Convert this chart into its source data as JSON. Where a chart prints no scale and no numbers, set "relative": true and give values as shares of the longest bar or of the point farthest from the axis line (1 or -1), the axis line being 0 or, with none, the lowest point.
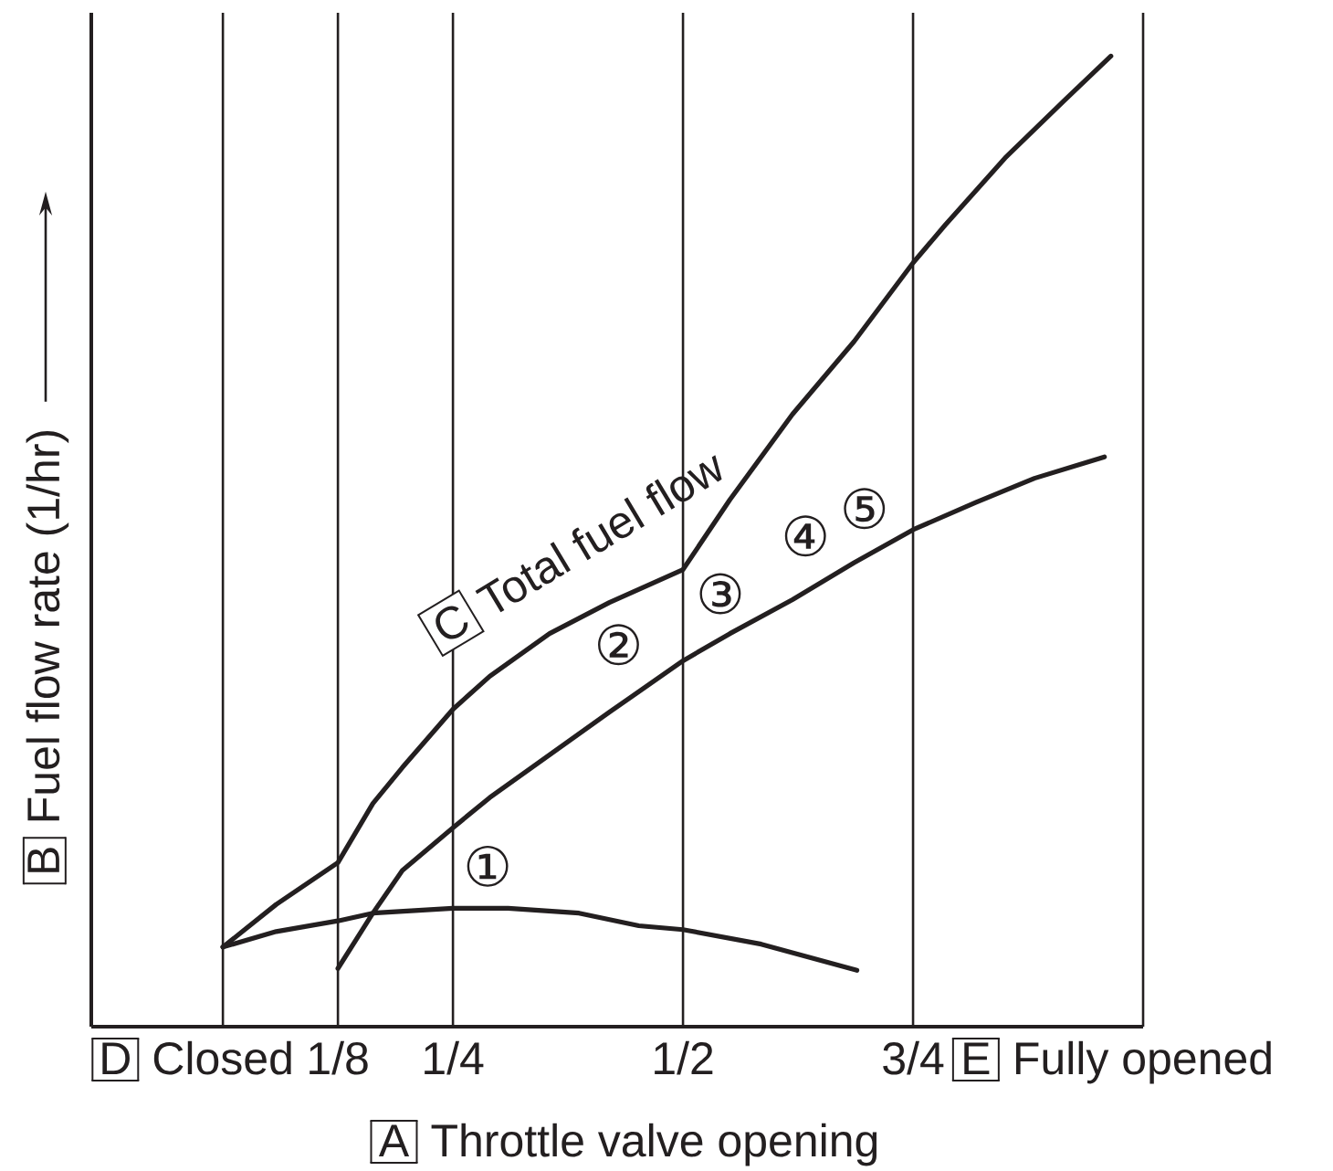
{
  "chart_data": {
    "type": "line",
    "relative": true,
    "xlabel": "Throttle valve opening",
    "ylabel": "Fuel flow rate (1/hr)",
    "xlim": [
      -0.143,
      1
    ],
    "xticks": [
      {
        "value": 0,
        "label": "Closed"
      },
      {
        "value": 0.125,
        "label": "1/8"
      },
      {
        "value": 0.25,
        "label": "1/4"
      },
      {
        "value": 0.5,
        "label": "1/2"
      },
      {
        "value": 0.75,
        "label": "3/4"
      },
      {
        "value": 1,
        "label": "Fully opened"
      }
    ],
    "grid": "x",
    "series": [
      {
        "name": "①",
        "color": "#231f20",
        "x": [
          0,
          0.058,
          0.125,
          0.163,
          0.25,
          0.31,
          0.387,
          0.452,
          0.5,
          0.585,
          0.689
        ],
        "values": [
          0.082,
          0.098,
          0.109,
          0.117,
          0.122,
          0.122,
          0.117,
          0.104,
          0.1,
          0.085,
          0.058
        ]
      },
      {
        "name": "②",
        "color": "#231f20",
        "x": [
          0.125,
          0.163,
          0.195,
          0.25,
          0.29,
          0.355,
          0.42,
          0.5,
          0.551,
          0.619,
          0.686,
          0.75,
          0.818,
          0.882,
          0.958
        ],
        "values": [
          0.06,
          0.117,
          0.161,
          0.205,
          0.236,
          0.28,
          0.324,
          0.377,
          0.405,
          0.44,
          0.478,
          0.512,
          0.54,
          0.565,
          0.587
        ]
      },
      {
        "name": "Total fuel flow",
        "color": "#231f20",
        "x": [
          0,
          0.058,
          0.125,
          0.163,
          0.195,
          0.25,
          0.29,
          0.355,
          0.42,
          0.5,
          0.551,
          0.619,
          0.686,
          0.75,
          0.785,
          0.85,
          0.914,
          0.965
        ],
        "values": [
          0.082,
          0.126,
          0.169,
          0.23,
          0.267,
          0.327,
          0.361,
          0.405,
          0.437,
          0.471,
          0.543,
          0.631,
          0.706,
          0.787,
          0.826,
          0.895,
          0.954,
          1.0
        ]
      }
    ],
    "annotations": [
      "③",
      "④",
      "⑤",
      "A",
      "B",
      "C",
      "D",
      "E"
    ]
  }
}
